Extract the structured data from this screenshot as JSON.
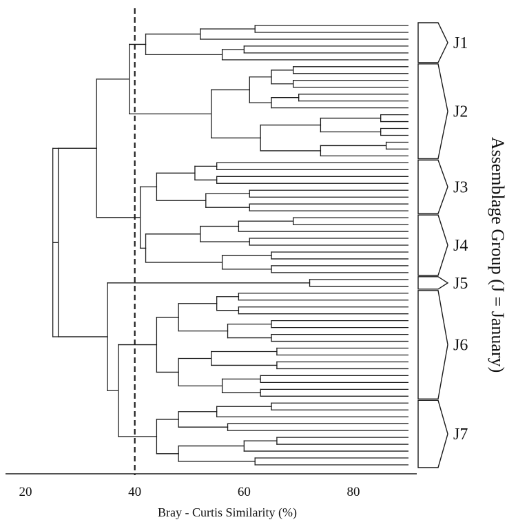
{
  "axis": {
    "title": "Bray - Curtis Similarity (%)",
    "min": 20,
    "max": 90,
    "ticks": [
      20,
      40,
      60,
      80
    ]
  },
  "cutoff_similarity": 40,
  "side_title": "Assemblage Group (J = January)",
  "groups": [
    {
      "id": "J1",
      "label": "J1",
      "leaves": 6
    },
    {
      "id": "J2",
      "label": "J2",
      "leaves": 14
    },
    {
      "id": "J3",
      "label": "J3",
      "leaves": 8
    },
    {
      "id": "J4",
      "label": "J4",
      "leaves": 9
    },
    {
      "id": "J5",
      "label": "J5",
      "leaves": 2
    },
    {
      "id": "J6",
      "label": "J6",
      "leaves": 16
    },
    {
      "id": "J7",
      "label": "J7",
      "leaves": 10
    }
  ],
  "dendrogram": {
    "leaf_end_similarity": 90,
    "join_similarities": {
      "root": 25,
      "upper": 33,
      "lower": 26,
      "J1_J2": 39,
      "J3_J4": 41,
      "J5_J6J7": 35,
      "J6_J7": 37,
      "J1": 42,
      "J2": 54,
      "J3": 44,
      "J4": 42,
      "J5": 72,
      "J6": 44,
      "J7": 44
    }
  }
}
